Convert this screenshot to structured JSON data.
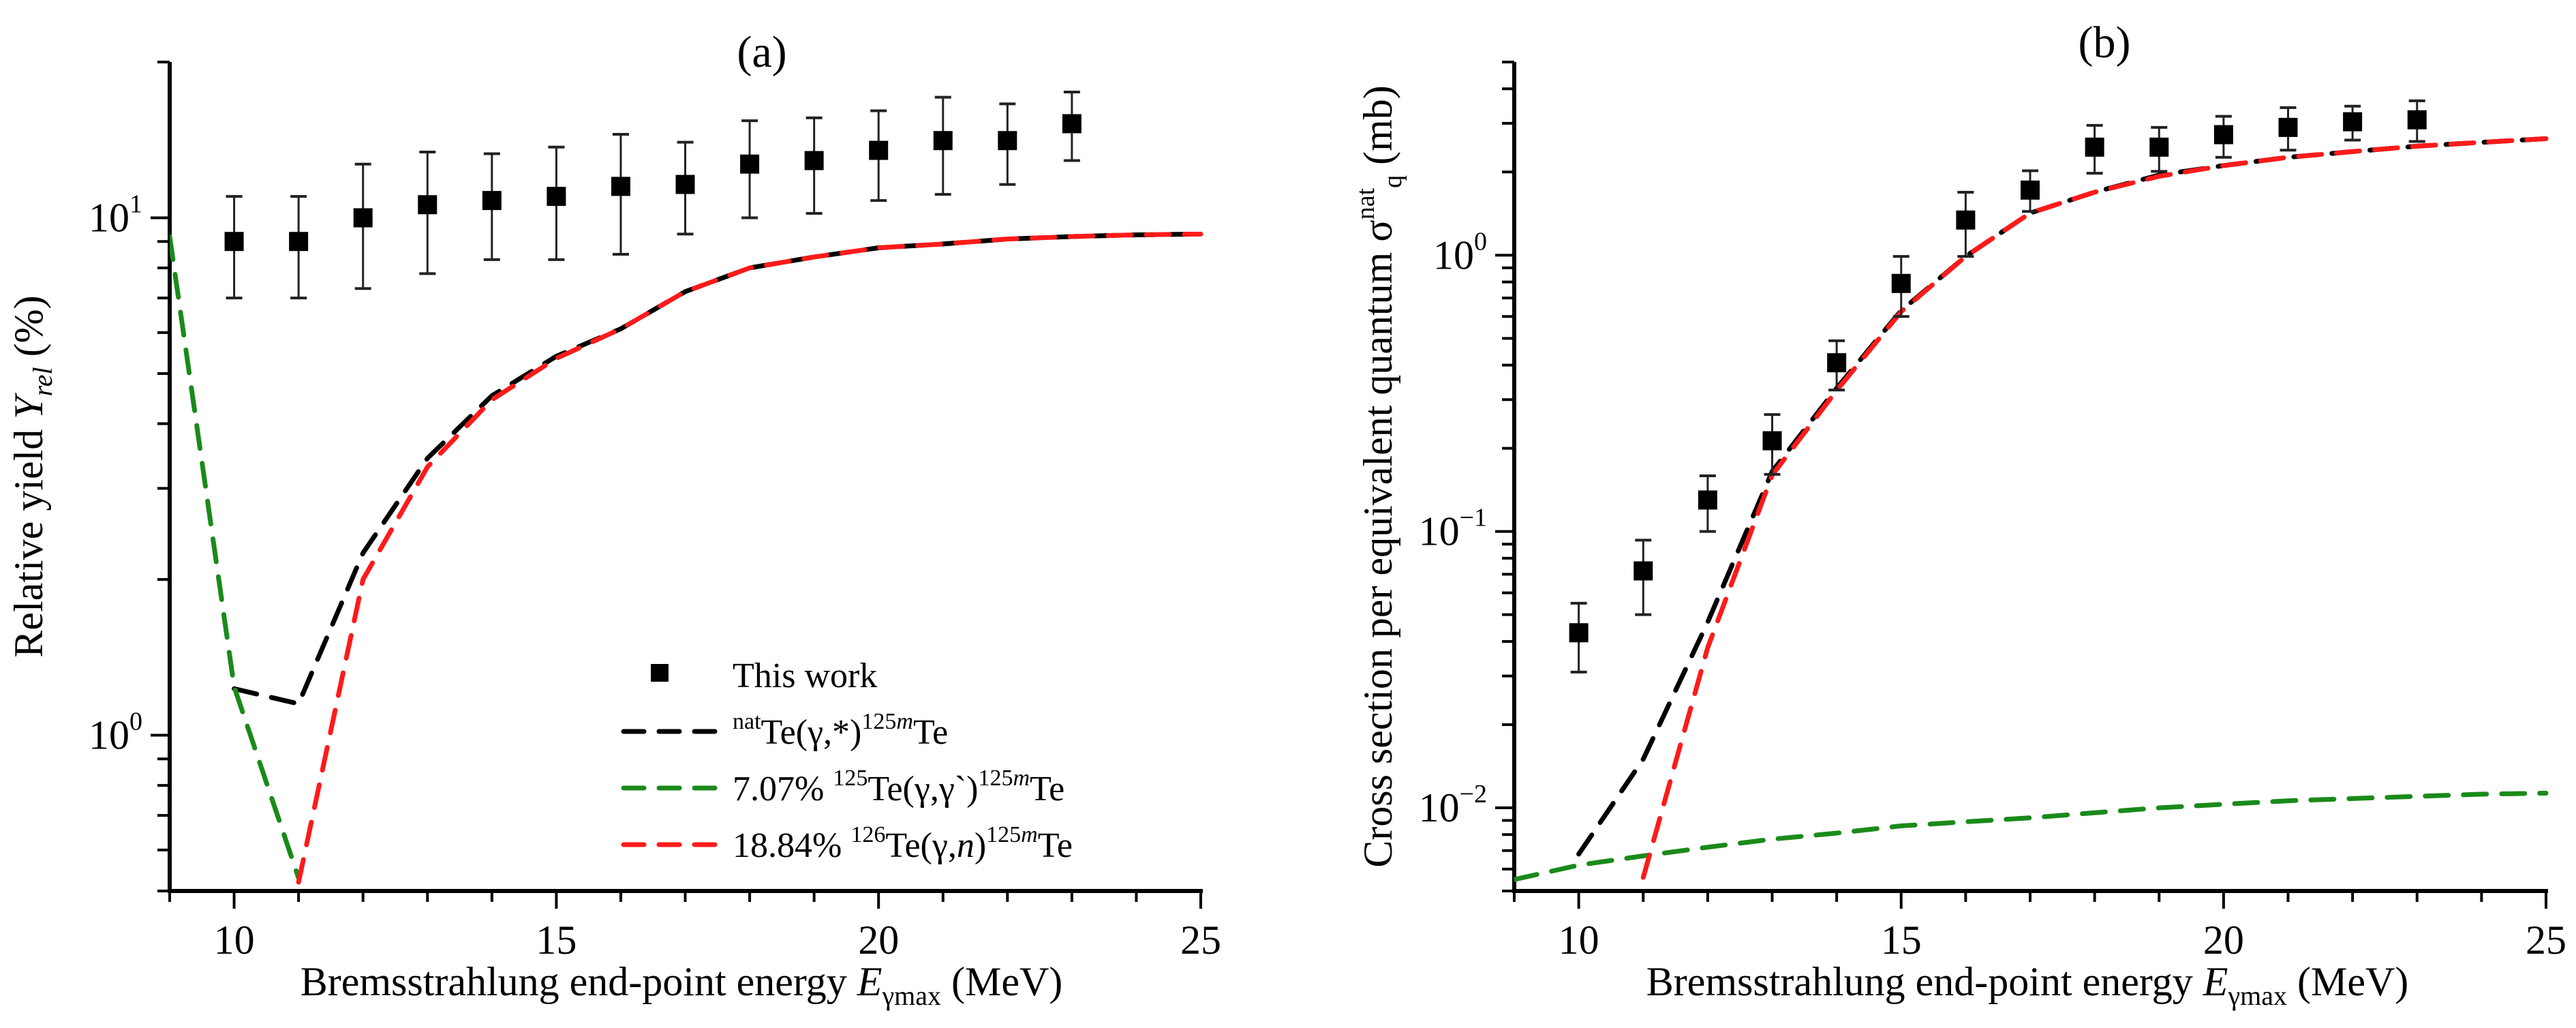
{
  "chart_data": [
    {
      "id": "a",
      "type": "scatter",
      "title": "(a)",
      "xlabel": {
        "main": "Bremsstrahlung end-point energy ",
        "var": "E",
        "sub": "γmax",
        "unit": " (MeV)"
      },
      "ylabel": {
        "main": "Relative yield ",
        "var": "Y",
        "sub": "rel",
        "unit": " (%)"
      },
      "xscale": "linear",
      "yscale": "log",
      "xlim": [
        9,
        25
      ],
      "ylim": [
        0.5,
        20
      ],
      "xticks": [
        10,
        15,
        20,
        25
      ],
      "xtick_labels": [
        "10",
        "15",
        "20",
        "25"
      ],
      "yticks": [
        {
          "value": 1,
          "base": "10",
          "exp": "0"
        },
        {
          "value": 10,
          "base": "10",
          "exp": "1"
        }
      ],
      "grid": false,
      "legend_position": "bottom-right",
      "legend": [
        {
          "kind": "marker",
          "color": "#000000",
          "parts": [
            {
              "t": "This work"
            }
          ]
        },
        {
          "kind": "dash",
          "color": "#000000",
          "parts": [
            {
              "t": "nat",
              "sup": true
            },
            {
              "t": "Te(γ,*)"
            },
            {
              "t": "125",
              "sup": true
            },
            {
              "t": "m",
              "sup": true,
              "italic": true
            },
            {
              "t": "Te"
            }
          ]
        },
        {
          "kind": "dash",
          "color": "#1a8a1a",
          "parts": [
            {
              "t": "7.07% "
            },
            {
              "t": "125",
              "sup": true
            },
            {
              "t": "Te(γ,γ`)"
            },
            {
              "t": "125",
              "sup": true
            },
            {
              "t": "m",
              "sup": true,
              "italic": true
            },
            {
              "t": "Te"
            }
          ]
        },
        {
          "kind": "dash",
          "color": "#ff1a1a",
          "parts": [
            {
              "t": "18.84% "
            },
            {
              "t": "126",
              "sup": true
            },
            {
              "t": "Te(γ,"
            },
            {
              "t": "n",
              "italic": true
            },
            {
              "t": ")"
            },
            {
              "t": "125",
              "sup": true
            },
            {
              "t": "m",
              "sup": true,
              "italic": true
            },
            {
              "t": "Te"
            }
          ]
        }
      ],
      "points": {
        "name": "This work",
        "x": [
          10,
          11,
          12,
          13,
          14,
          15,
          16,
          17,
          18,
          19,
          20,
          21,
          22,
          23
        ],
        "y": [
          9.0,
          9.0,
          10.0,
          10.6,
          10.8,
          11.0,
          11.5,
          11.6,
          12.7,
          12.9,
          13.5,
          14.1,
          14.1,
          15.2
        ],
        "y_upper": [
          11.0,
          11.0,
          12.7,
          13.4,
          13.3,
          13.7,
          14.5,
          14.0,
          15.4,
          15.6,
          16.1,
          17.1,
          16.6,
          17.5
        ],
        "y_lower": [
          7.0,
          7.0,
          7.3,
          7.8,
          8.3,
          8.3,
          8.5,
          9.3,
          10.0,
          10.2,
          10.8,
          11.1,
          11.6,
          12.9
        ]
      },
      "series": [
        {
          "name": "natTe(γ,*)125mTe",
          "color": "#000000",
          "x": [
            10,
            11,
            12,
            13,
            14,
            15,
            16,
            17,
            18,
            19,
            20,
            21,
            22,
            23,
            24,
            25
          ],
          "y": [
            1.23,
            1.15,
            2.25,
            3.43,
            4.53,
            5.4,
            6.1,
            7.2,
            8.0,
            8.4,
            8.75,
            8.9,
            9.1,
            9.2,
            9.27,
            9.3
          ]
        },
        {
          "name": "7.07% 125Te(γ,γ`)125mTe",
          "color": "#1a8a1a",
          "x": [
            9,
            10,
            11
          ],
          "y": [
            9.2,
            1.24,
            0.53
          ]
        },
        {
          "name": "18.84% 126Te(γ,n)125mTe",
          "color": "#ff1a1a",
          "x": [
            11,
            12,
            13,
            14,
            15,
            16,
            17,
            18,
            19,
            20,
            21,
            22,
            23,
            24,
            25
          ],
          "y": [
            0.52,
            2.0,
            3.3,
            4.45,
            5.35,
            6.1,
            7.2,
            8.0,
            8.4,
            8.75,
            8.9,
            9.1,
            9.2,
            9.27,
            9.3
          ]
        }
      ]
    },
    {
      "id": "b",
      "type": "scatter",
      "title": "(b)",
      "xlabel": {
        "main": "Bremsstrahlung end-point energy ",
        "var": "E",
        "sub": "γmax",
        "unit": " (MeV)"
      },
      "ylabel": {
        "main": "Cross section per equivalent quantum σ",
        "sub": "q",
        "sup": "nat",
        "unit": " (mb)"
      },
      "xscale": "linear",
      "yscale": "log",
      "xlim": [
        9,
        25
      ],
      "ylim": [
        0.005,
        5
      ],
      "xticks": [
        10,
        15,
        20,
        25
      ],
      "xtick_labels": [
        "10",
        "15",
        "20",
        "25"
      ],
      "yticks": [
        {
          "value": 0.01,
          "base": "10",
          "exp": "−2"
        },
        {
          "value": 0.1,
          "base": "10",
          "exp": "−1"
        },
        {
          "value": 1,
          "base": "10",
          "exp": "0"
        }
      ],
      "grid": false,
      "points": {
        "name": "This work",
        "x": [
          10,
          11,
          12,
          13,
          14,
          15,
          16,
          17,
          18,
          19,
          20,
          21,
          22,
          23
        ],
        "y": [
          0.043,
          0.072,
          0.13,
          0.213,
          0.408,
          0.79,
          1.34,
          1.72,
          2.46,
          2.46,
          2.73,
          2.9,
          3.04,
          3.09
        ],
        "y_upper": [
          0.055,
          0.093,
          0.159,
          0.265,
          0.49,
          0.99,
          1.69,
          2.02,
          2.95,
          2.9,
          3.18,
          3.42,
          3.46,
          3.62
        ],
        "y_lower": [
          0.031,
          0.05,
          0.1,
          0.161,
          0.325,
          0.6,
          0.99,
          1.44,
          1.98,
          2.01,
          2.26,
          2.4,
          2.61,
          2.58
        ]
      },
      "series": [
        {
          "name": "natTe(γ,*)125mTe",
          "color": "#000000",
          "x": [
            10,
            11,
            12,
            13,
            14,
            15,
            16,
            17,
            18,
            19,
            20,
            21,
            22,
            23,
            24,
            25
          ],
          "y": [
            0.0068,
            0.015,
            0.047,
            0.165,
            0.33,
            0.63,
            0.99,
            1.42,
            1.69,
            1.95,
            2.11,
            2.26,
            2.37,
            2.48,
            2.56,
            2.64
          ]
        },
        {
          "name": "7.07% 125Te(γ,γ`)125mTe",
          "color": "#1a8a1a",
          "x": [
            9,
            10,
            11,
            12,
            13,
            14,
            15,
            16,
            17,
            18,
            19,
            20,
            21,
            22,
            23,
            24,
            25
          ],
          "y": [
            0.0055,
            0.0062,
            0.0067,
            0.0072,
            0.0077,
            0.0081,
            0.0086,
            0.0089,
            0.0092,
            0.0096,
            0.01,
            0.0103,
            0.0106,
            0.0108,
            0.011,
            0.0112,
            0.0113
          ]
        },
        {
          "name": "18.84% 126Te(γ,n)125mTe",
          "color": "#ff1a1a",
          "x": [
            11,
            12,
            13,
            14,
            15,
            16,
            17,
            18,
            19,
            20,
            21,
            22,
            23,
            24,
            25
          ],
          "y": [
            0.0056,
            0.038,
            0.16,
            0.324,
            0.625,
            0.99,
            1.42,
            1.69,
            1.93,
            2.11,
            2.26,
            2.37,
            2.48,
            2.56,
            2.64
          ]
        }
      ]
    }
  ]
}
